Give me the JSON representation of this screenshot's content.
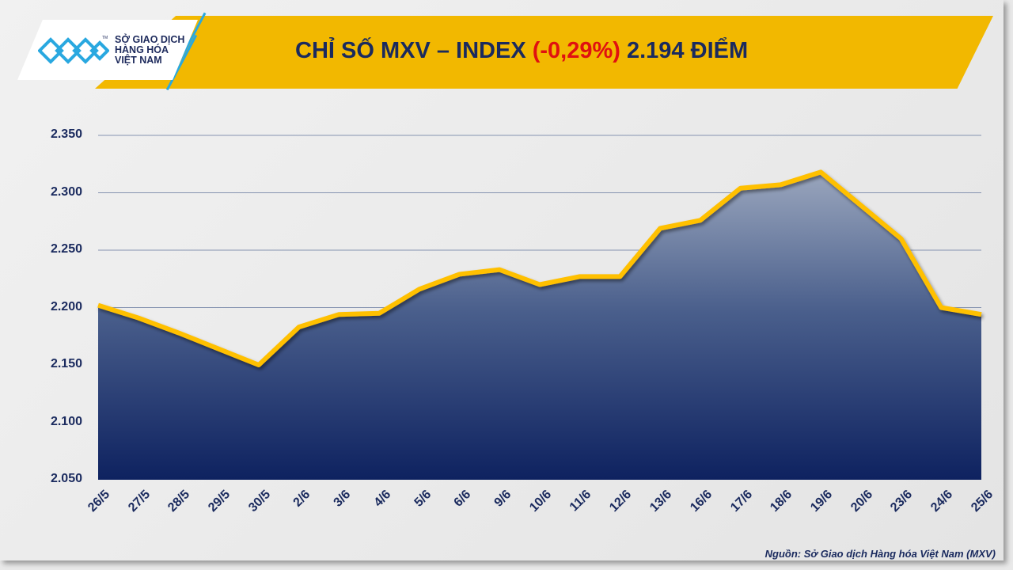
{
  "header": {
    "logo_text": [
      "SỞ GIAO DỊCH",
      "HÀNG HÓA",
      "VIỆT NAM"
    ],
    "logo_tm": "TM",
    "title_prefix": "CHỈ SỐ MXV – INDEX ",
    "title_change": "(-0,29%)",
    "title_suffix": " 2.194 ĐIỂM"
  },
  "colors": {
    "banner": "#f2b800",
    "line": "#ffc000",
    "area_top": "#9aa6bd",
    "area_bottom": "#0e2260",
    "negative": "#e01010",
    "text": "#1a2a5e"
  },
  "chart_data": {
    "type": "area",
    "title": "CHỈ SỐ MXV – INDEX (-0,29%) 2.194 ĐIỂM",
    "categories": [
      "26/5",
      "27/5",
      "28/5",
      "29/5",
      "30/5",
      "2/6",
      "3/6",
      "4/6",
      "5/6",
      "6/6",
      "9/6",
      "10/6",
      "11/6",
      "12/6",
      "13/6",
      "16/6",
      "17/6",
      "18/6",
      "19/6",
      "20/6",
      "23/6",
      "24/6",
      "25/6"
    ],
    "values": [
      2202,
      2191,
      2178,
      2164,
      2150,
      2183,
      2194,
      2195,
      2216,
      2229,
      2233,
      2220,
      2227,
      2227,
      2269,
      2276,
      2304,
      2307,
      2318,
      2289,
      2260,
      2200,
      2194
    ],
    "yticks": [
      "2.050",
      "2.100",
      "2.150",
      "2.200",
      "2.250",
      "2.300",
      "2.350"
    ],
    "ylim": [
      2050,
      2350
    ],
    "grid": true,
    "legend": "none"
  },
  "footer": {
    "source": "Nguồn: Sở Giao dịch Hàng hóa Việt Nam (MXV)"
  }
}
